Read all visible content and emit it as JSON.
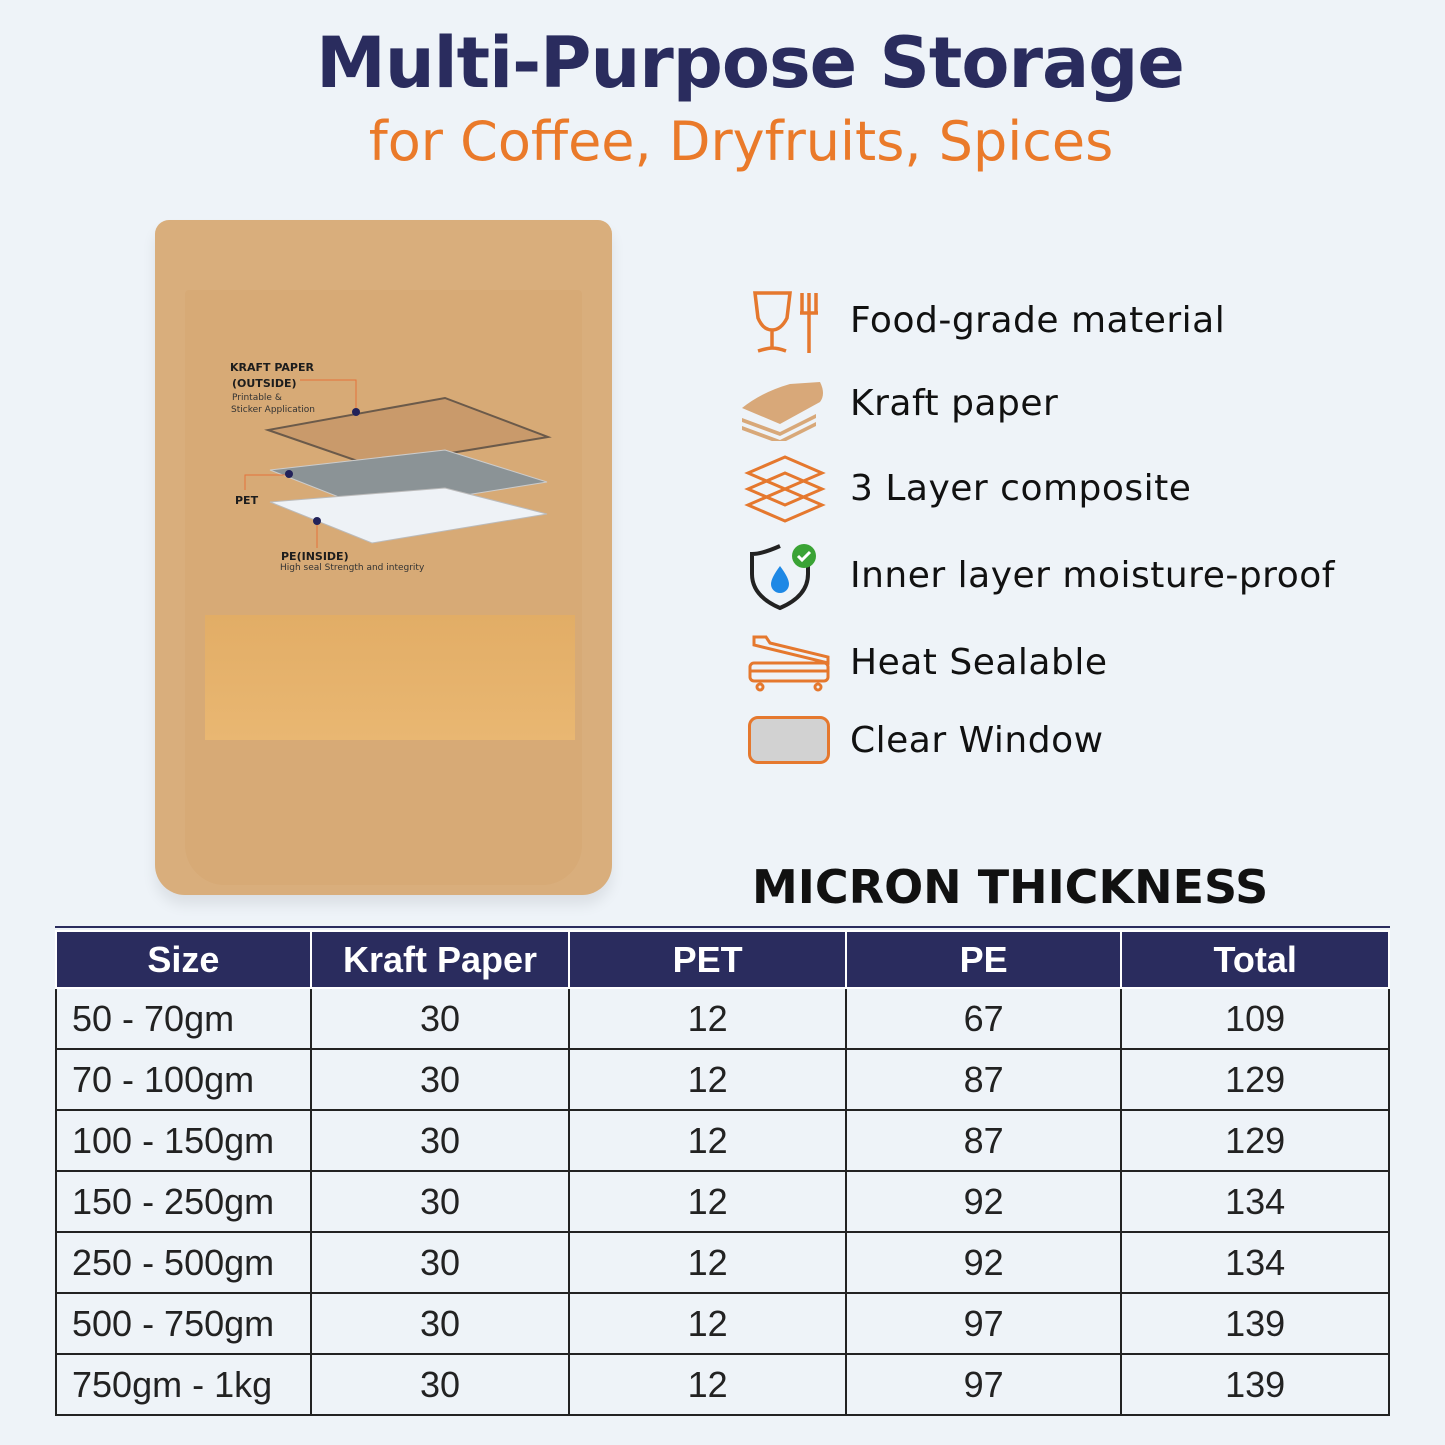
{
  "header": {
    "title": "Multi-Purpose Storage",
    "subtitle": "for Coffee, Dryfruits, Spices"
  },
  "bag": {
    "kraft_label": "KRAFT PAPER",
    "kraft_sub": "(OUTSIDE)",
    "kraft_note1": "Printable &",
    "kraft_note2": "Sticker Application",
    "pet_label": "PET",
    "pe_label": "PE(INSIDE)",
    "pe_note": "High seal Strength and integrity"
  },
  "features": [
    {
      "icon": "food-grade-icon",
      "label": "Food-grade material"
    },
    {
      "icon": "kraft-paper-icon",
      "label": "Kraft paper"
    },
    {
      "icon": "layers-icon",
      "label": "3 Layer composite"
    },
    {
      "icon": "moisture-shield-icon",
      "label": "Inner layer moisture-proof"
    },
    {
      "icon": "heat-sealer-icon",
      "label": "Heat Sealable"
    },
    {
      "icon": "clear-window-icon",
      "label": "Clear Window"
    }
  ],
  "colors": {
    "navy": "#2a2c5e",
    "orange": "#ea7a2a",
    "kraft": "#d9ae7c"
  },
  "table": {
    "title": "MICRON THICKNESS",
    "headers": [
      "Size",
      "Kraft Paper",
      "PET",
      "PE",
      "Total"
    ],
    "rows": [
      [
        "50 - 70gm",
        "30",
        "12",
        "67",
        "109"
      ],
      [
        "70 - 100gm",
        "30",
        "12",
        "87",
        "129"
      ],
      [
        "100 - 150gm",
        "30",
        "12",
        "87",
        "129"
      ],
      [
        "150 - 250gm",
        "30",
        "12",
        "92",
        "134"
      ],
      [
        "250 - 500gm",
        "30",
        "12",
        "92",
        "134"
      ],
      [
        "500 - 750gm",
        "30",
        "12",
        "97",
        "139"
      ],
      [
        "750gm - 1kg",
        "30",
        "12",
        "97",
        "139"
      ]
    ]
  }
}
